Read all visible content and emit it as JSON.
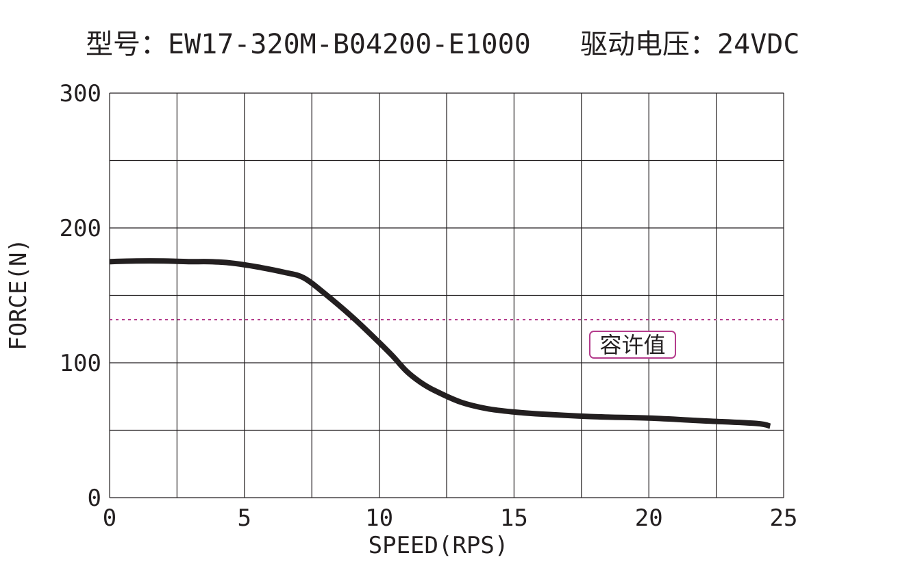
{
  "chart_data": {
    "type": "line",
    "title": "型号：EW17-320M-B04200-E1000   驱动电压：24VDC",
    "xlabel": "SPEED(RPS)",
    "ylabel": "FORCE(N)",
    "xlim": [
      0,
      25
    ],
    "ylim": [
      0,
      300
    ],
    "xticks": [
      "0",
      "5",
      "10",
      "15",
      "20",
      "25"
    ],
    "yticks": [
      "0",
      "100",
      "200",
      "300"
    ],
    "grid": true,
    "series": [
      {
        "color": "#231f20",
        "x": [
          0,
          1,
          2,
          3,
          3.7,
          4.5,
          5.5,
          6.5,
          7.2,
          8,
          9,
          10,
          10.5,
          11,
          11.5,
          12,
          13,
          14,
          15,
          16,
          18,
          20,
          22,
          24,
          24.5
        ],
        "y": [
          175,
          175.5,
          175.5,
          175,
          175,
          174,
          171,
          167,
          163,
          151,
          134,
          115,
          105,
          94,
          86,
          80,
          71,
          66,
          63.5,
          62,
          60,
          59,
          57,
          55,
          53
        ]
      }
    ],
    "reference_line": {
      "y": 132,
      "color": "#b43c8c",
      "style": "dotted",
      "label": "容许值"
    }
  }
}
